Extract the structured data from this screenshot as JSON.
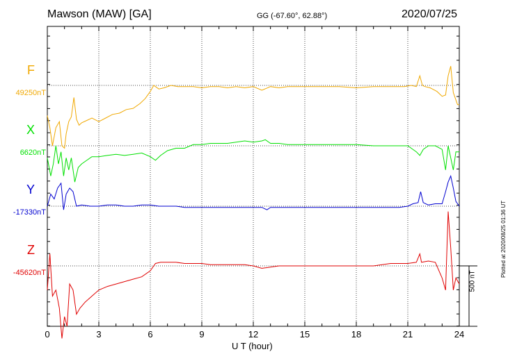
{
  "header": {
    "station": "Mawson (MAW)  [GA]",
    "coords": "GG (-67.60°,  62.88°)",
    "date": "2020/07/25"
  },
  "side_note": "Plotted at 2020/08/25 01:36 UT",
  "chart_data": {
    "type": "line",
    "xlabel": "U T (hour)",
    "xlim": [
      0,
      24
    ],
    "xticks": [
      "0",
      "3",
      "6",
      "9",
      "12",
      "15",
      "18",
      "21",
      "24"
    ],
    "scale_bar": {
      "value": 500,
      "label": "500 nT"
    },
    "grid": {
      "vertical": "dotted every 3 h",
      "baselines": "dotted per component"
    },
    "series": [
      {
        "name": "F",
        "baseline": "49250nT",
        "color": "#f0a800",
        "offset_nT": 0,
        "points": [
          [
            0,
            -250
          ],
          [
            0.15,
            -350
          ],
          [
            0.3,
            -500
          ],
          [
            0.5,
            -350
          ],
          [
            0.7,
            -300
          ],
          [
            0.85,
            -500
          ],
          [
            1.0,
            -520
          ],
          [
            1.1,
            -400
          ],
          [
            1.25,
            -300
          ],
          [
            1.4,
            -260
          ],
          [
            1.55,
            -100
          ],
          [
            1.7,
            -280
          ],
          [
            1.85,
            -330
          ],
          [
            2.0,
            -310
          ],
          [
            2.3,
            -290
          ],
          [
            2.6,
            -270
          ],
          [
            3.0,
            -300
          ],
          [
            3.4,
            -270
          ],
          [
            3.8,
            -240
          ],
          [
            4.2,
            -230
          ],
          [
            4.6,
            -200
          ],
          [
            5.0,
            -190
          ],
          [
            5.4,
            -150
          ],
          [
            5.7,
            -110
          ],
          [
            6.0,
            -50
          ],
          [
            6.2,
            0
          ],
          [
            6.5,
            -30
          ],
          [
            6.8,
            -20
          ],
          [
            7.2,
            0
          ],
          [
            7.6,
            -10
          ],
          [
            8.0,
            -10
          ],
          [
            8.5,
            -10
          ],
          [
            9.0,
            -20
          ],
          [
            9.5,
            -10
          ],
          [
            10.0,
            -10
          ],
          [
            10.5,
            -20
          ],
          [
            11.0,
            -10
          ],
          [
            11.5,
            -20
          ],
          [
            12.0,
            -10
          ],
          [
            12.5,
            -40
          ],
          [
            13.0,
            -10
          ],
          [
            13.5,
            -20
          ],
          [
            14.0,
            -10
          ],
          [
            15.0,
            -10
          ],
          [
            16.0,
            -10
          ],
          [
            17.0,
            -10
          ],
          [
            18.0,
            -20
          ],
          [
            19.0,
            -10
          ],
          [
            20.0,
            -10
          ],
          [
            20.8,
            -10
          ],
          [
            21.2,
            0
          ],
          [
            21.5,
            -10
          ],
          [
            21.7,
            80
          ],
          [
            21.85,
            0
          ],
          [
            22.0,
            -10
          ],
          [
            22.3,
            -20
          ],
          [
            22.7,
            -50
          ],
          [
            23.0,
            -90
          ],
          [
            23.2,
            -80
          ],
          [
            23.35,
            80
          ],
          [
            23.5,
            160
          ],
          [
            23.65,
            -60
          ],
          [
            23.8,
            -120
          ],
          [
            23.9,
            -160
          ],
          [
            24.0,
            -160
          ]
        ]
      },
      {
        "name": "X",
        "baseline": "6620nT",
        "color": "#00e000",
        "offset_nT": 0,
        "points": [
          [
            0,
            -100
          ],
          [
            0.2,
            -250
          ],
          [
            0.35,
            -150
          ],
          [
            0.5,
            0
          ],
          [
            0.65,
            -150
          ],
          [
            0.8,
            -50
          ],
          [
            0.95,
            -250
          ],
          [
            1.1,
            -100
          ],
          [
            1.25,
            -200
          ],
          [
            1.4,
            -100
          ],
          [
            1.6,
            -300
          ],
          [
            1.8,
            -180
          ],
          [
            2.0,
            -150
          ],
          [
            2.3,
            -120
          ],
          [
            2.6,
            -90
          ],
          [
            3.0,
            -90
          ],
          [
            3.5,
            -80
          ],
          [
            4.0,
            -70
          ],
          [
            4.5,
            -80
          ],
          [
            5.0,
            -70
          ],
          [
            5.5,
            -60
          ],
          [
            6.0,
            -90
          ],
          [
            6.3,
            -120
          ],
          [
            6.6,
            -80
          ],
          [
            7.0,
            -40
          ],
          [
            7.5,
            -20
          ],
          [
            8.0,
            -20
          ],
          [
            8.5,
            10
          ],
          [
            9.0,
            10
          ],
          [
            9.5,
            20
          ],
          [
            10.0,
            20
          ],
          [
            10.5,
            20
          ],
          [
            11.0,
            30
          ],
          [
            11.5,
            40
          ],
          [
            12.0,
            30
          ],
          [
            12.5,
            40
          ],
          [
            12.7,
            50
          ],
          [
            13.0,
            20
          ],
          [
            13.5,
            20
          ],
          [
            14.0,
            10
          ],
          [
            14.5,
            10
          ],
          [
            15.0,
            10
          ],
          [
            16.0,
            10
          ],
          [
            17.0,
            10
          ],
          [
            18.0,
            10
          ],
          [
            19.0,
            0
          ],
          [
            20.0,
            0
          ],
          [
            21.0,
            0
          ],
          [
            21.5,
            -50
          ],
          [
            21.7,
            -80
          ],
          [
            21.9,
            -30
          ],
          [
            22.2,
            0
          ],
          [
            22.6,
            0
          ],
          [
            23.0,
            -30
          ],
          [
            23.2,
            -200
          ],
          [
            23.35,
            0
          ],
          [
            23.5,
            -100
          ],
          [
            23.65,
            -200
          ],
          [
            23.8,
            -50
          ],
          [
            24.0,
            -50
          ]
        ]
      },
      {
        "name": "Y",
        "baseline": "-17330nT",
        "color": "#0000d0",
        "offset_nT": 0,
        "points": [
          [
            0,
            0
          ],
          [
            0.2,
            100
          ],
          [
            0.4,
            60
          ],
          [
            0.6,
            150
          ],
          [
            0.8,
            190
          ],
          [
            0.95,
            -30
          ],
          [
            1.1,
            100
          ],
          [
            1.3,
            150
          ],
          [
            1.5,
            120
          ],
          [
            1.7,
            0
          ],
          [
            2.0,
            10
          ],
          [
            2.5,
            0
          ],
          [
            3.0,
            0
          ],
          [
            3.5,
            10
          ],
          [
            4.0,
            10
          ],
          [
            4.5,
            0
          ],
          [
            5.0,
            0
          ],
          [
            5.5,
            10
          ],
          [
            6.0,
            10
          ],
          [
            6.5,
            0
          ],
          [
            7.0,
            0
          ],
          [
            7.5,
            0
          ],
          [
            8.0,
            -10
          ],
          [
            8.5,
            -10
          ],
          [
            9.0,
            -10
          ],
          [
            9.5,
            -10
          ],
          [
            10.0,
            -10
          ],
          [
            10.5,
            -10
          ],
          [
            11.0,
            -10
          ],
          [
            11.5,
            -10
          ],
          [
            12.0,
            -10
          ],
          [
            12.5,
            -10
          ],
          [
            12.8,
            -30
          ],
          [
            13.0,
            -10
          ],
          [
            13.5,
            -10
          ],
          [
            14.0,
            -10
          ],
          [
            15.0,
            -10
          ],
          [
            16.0,
            -10
          ],
          [
            17.0,
            -10
          ],
          [
            18.0,
            -10
          ],
          [
            19.0,
            -10
          ],
          [
            20.0,
            -10
          ],
          [
            20.5,
            -10
          ],
          [
            21.0,
            0
          ],
          [
            21.3,
            20
          ],
          [
            21.6,
            30
          ],
          [
            21.75,
            120
          ],
          [
            21.9,
            30
          ],
          [
            22.2,
            10
          ],
          [
            22.6,
            20
          ],
          [
            23.0,
            20
          ],
          [
            23.2,
            120
          ],
          [
            23.35,
            200
          ],
          [
            23.5,
            250
          ],
          [
            23.65,
            150
          ],
          [
            23.8,
            40
          ],
          [
            24.0,
            0
          ]
        ]
      },
      {
        "name": "Z",
        "baseline": "-45620nT",
        "color": "#e00000",
        "offset_nT": 0,
        "points": [
          [
            0,
            -200
          ],
          [
            0.15,
            100
          ],
          [
            0.3,
            -250
          ],
          [
            0.5,
            -200
          ],
          [
            0.7,
            -350
          ],
          [
            0.85,
            -600
          ],
          [
            1.0,
            -420
          ],
          [
            1.15,
            -500
          ],
          [
            1.3,
            -150
          ],
          [
            1.5,
            -200
          ],
          [
            1.7,
            -400
          ],
          [
            1.9,
            -350
          ],
          [
            2.2,
            -300
          ],
          [
            2.6,
            -250
          ],
          [
            3.0,
            -200
          ],
          [
            3.5,
            -170
          ],
          [
            4.0,
            -150
          ],
          [
            4.5,
            -130
          ],
          [
            5.0,
            -110
          ],
          [
            5.5,
            -90
          ],
          [
            6.0,
            -40
          ],
          [
            6.3,
            20
          ],
          [
            6.6,
            30
          ],
          [
            7.0,
            30
          ],
          [
            7.5,
            30
          ],
          [
            8.0,
            20
          ],
          [
            8.5,
            20
          ],
          [
            9.0,
            20
          ],
          [
            9.5,
            10
          ],
          [
            10.0,
            10
          ],
          [
            10.5,
            10
          ],
          [
            11.0,
            10
          ],
          [
            11.5,
            10
          ],
          [
            12.0,
            0
          ],
          [
            12.5,
            -20
          ],
          [
            13.0,
            -10
          ],
          [
            13.5,
            0
          ],
          [
            14.0,
            0
          ],
          [
            15.0,
            0
          ],
          [
            16.0,
            0
          ],
          [
            17.0,
            0
          ],
          [
            18.0,
            0
          ],
          [
            19.0,
            0
          ],
          [
            20.0,
            20
          ],
          [
            21.0,
            20
          ],
          [
            21.5,
            30
          ],
          [
            21.7,
            100
          ],
          [
            21.8,
            30
          ],
          [
            22.2,
            40
          ],
          [
            22.6,
            30
          ],
          [
            23.0,
            -100
          ],
          [
            23.2,
            -200
          ],
          [
            23.35,
            450
          ],
          [
            23.5,
            150
          ],
          [
            23.65,
            -200
          ],
          [
            23.8,
            -100
          ],
          [
            24.0,
            -150
          ]
        ]
      }
    ]
  }
}
